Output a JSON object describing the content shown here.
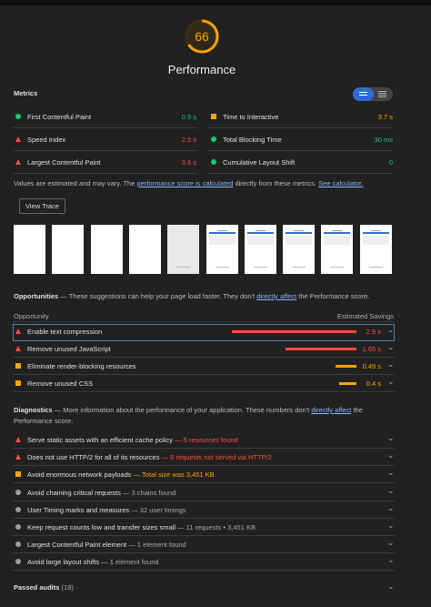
{
  "score": {
    "value": 66,
    "label": "Performance"
  },
  "metrics": {
    "title": "Metrics",
    "items": [
      {
        "name": "First Contentful Paint",
        "value": "0.9 s",
        "status": "pass"
      },
      {
        "name": "Speed Index",
        "value": "2.5 s",
        "status": "fail"
      },
      {
        "name": "Largest Contentful Paint",
        "value": "3.6 s",
        "status": "fail"
      },
      {
        "name": "Time to Interactive",
        "value": "3.7 s",
        "status": "average"
      },
      {
        "name": "Total Blocking Time",
        "value": "30 ms",
        "status": "pass"
      },
      {
        "name": "Cumulative Layout Shift",
        "value": "0",
        "status": "pass"
      }
    ]
  },
  "note": {
    "text_before": "Values are estimated and may vary. The ",
    "link_1": "performance score is calculated",
    "text_middle": " directly from these metrics. ",
    "link_2": "See calculator."
  },
  "view_trace": "View Trace",
  "opportunities": {
    "title": "Opportunities",
    "description_before": "— These suggestions can help your page load faster. They don't ",
    "description_link": "directly affect",
    "description_after": " the Performance score.",
    "column_opportunity": "Opportunity",
    "column_savings": "Estimated Savings",
    "items": [
      {
        "name": "Enable text compression",
        "savings": 2.9,
        "savings_label": "2.9 s",
        "status": "fail"
      },
      {
        "name": "Remove unused JavaScript",
        "savings": 1.65,
        "savings_label": "1.65 s",
        "status": "fail"
      },
      {
        "name": "Eliminate render-blocking resources",
        "savings": 0.49,
        "savings_label": "0.49 s",
        "status": "average"
      },
      {
        "name": "Remove unused CSS",
        "savings": 0.4,
        "savings_label": "0.4 s",
        "status": "average"
      }
    ]
  },
  "diagnostics": {
    "title": "Diagnostics",
    "description_before": "— More information about the performance of your application. These numbers don't ",
    "description_link": "directly affect",
    "description_after": " the Performance score.",
    "items": [
      {
        "name": "Serve static assets with an efficient cache policy",
        "detail": "— 5 resources found",
        "status": "fail"
      },
      {
        "name": "Does not use HTTP/2 for all of its resources",
        "detail": "— 6 requests not served via HTTP/2",
        "status": "fail"
      },
      {
        "name": "Avoid enormous network payloads",
        "detail": "— Total size was 3,451 KB",
        "status": "average"
      },
      {
        "name": "Avoid chaining critical requests",
        "detail": "— 3 chains found",
        "status": "info"
      },
      {
        "name": "User Timing marks and measures",
        "detail": "— 32 user timings",
        "status": "info"
      },
      {
        "name": "Keep request counts low and transfer sizes small",
        "detail": "— 11 requests • 3,451 KB",
        "status": "info"
      },
      {
        "name": "Largest Contentful Paint element",
        "detail": "— 1 element found",
        "status": "info"
      },
      {
        "name": "Avoid large layout shifts",
        "detail": "— 1 element found",
        "status": "info"
      }
    ]
  },
  "passed": {
    "title": "Passed audits",
    "count": "(18)"
  }
}
